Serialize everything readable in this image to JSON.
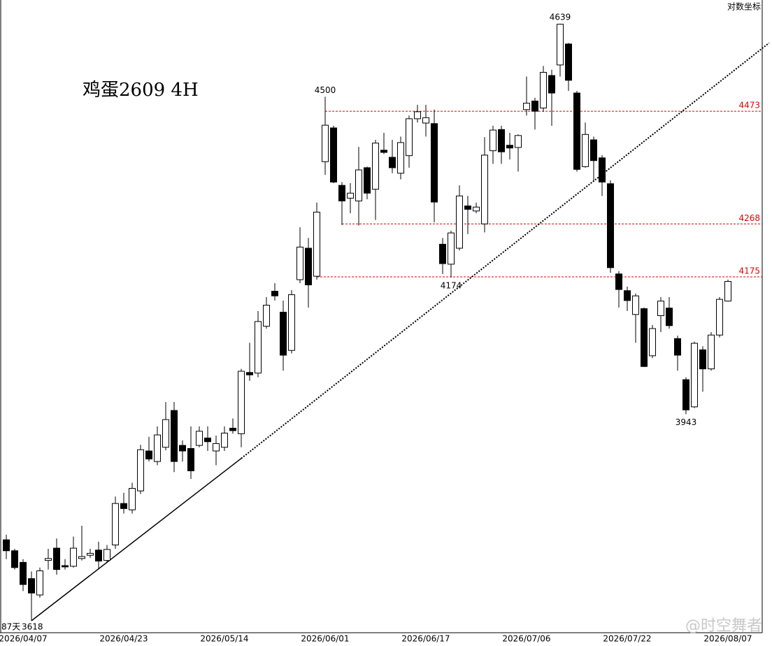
{
  "chart_data": {
    "type": "candlestick",
    "title": "鸡蛋2609  4H",
    "scale_note": "对数坐标",
    "log_scale": true,
    "ylim": [
      3600,
      4685
    ],
    "categories": [
      null,
      null,
      "2026/04/07",
      null,
      null,
      null,
      null,
      null,
      null,
      null,
      null,
      null,
      null,
      null,
      "2026/04/23",
      null,
      null,
      null,
      null,
      null,
      null,
      null,
      null,
      null,
      null,
      null,
      "2026/05/14",
      null,
      null,
      null,
      null,
      null,
      null,
      null,
      null,
      null,
      null,
      null,
      "2026/06/01",
      null,
      null,
      null,
      null,
      null,
      null,
      null,
      null,
      null,
      null,
      null,
      "2026/06/17",
      null,
      null,
      null,
      null,
      null,
      null,
      null,
      null,
      null,
      null,
      null,
      "2026/07/06",
      null,
      null,
      null,
      null,
      null,
      null,
      null,
      null,
      null,
      null,
      null,
      "2026/07/22",
      null,
      null,
      null,
      null,
      null,
      null,
      null,
      null,
      null,
      null,
      null,
      "2026/08/07"
    ],
    "open": [
      3742,
      3725,
      3707,
      3682,
      3657,
      3710,
      3729,
      3702,
      3701,
      3713,
      3718,
      3726,
      3710,
      3734,
      3799,
      3789,
      3819,
      3883,
      3866,
      3889,
      3949,
      3892,
      3887,
      3892,
      3904,
      3883,
      3889,
      3920,
      3911,
      4012,
      4011,
      4090,
      4150,
      4114,
      4049,
      4170,
      4225,
      4176,
      4380,
      4442,
      4337,
      4314,
      4309,
      4369,
      4330,
      4401,
      4388,
      4359,
      4391,
      4459,
      4451,
      4450,
      4232,
      4197,
      4225,
      4300,
      4291,
      4268,
      4400,
      4439,
      4410,
      4406,
      4476,
      4492,
      4479,
      4540,
      4560,
      4600,
      4507,
      4371,
      4420,
      4387,
      4340,
      4180,
      4151,
      4110,
      4120,
      4040,
      4108,
      4121,
      4069,
      4000,
      3955,
      4050,
      4018,
      4075,
      4133
    ],
    "high": [
      3750,
      3728,
      3712,
      3693,
      3699,
      3728,
      3744,
      3712,
      3747,
      3764,
      3728,
      3739,
      3734,
      3810,
      3816,
      3832,
      3893,
      3906,
      3923,
      3963,
      3963,
      3900,
      3923,
      3923,
      3923,
      3908,
      3923,
      3936,
      4018,
      4062,
      4116,
      4140,
      4164,
      4134,
      4152,
      4262,
      4243,
      4306,
      4500,
      4446,
      4343,
      4341,
      4407,
      4371,
      4420,
      4433,
      4420,
      4426,
      4465,
      4485,
      4485,
      4476,
      4243,
      4256,
      4337,
      4318,
      4306,
      4425,
      4446,
      4446,
      4433,
      4430,
      4538,
      4498,
      4558,
      4551,
      4639,
      4602,
      4511,
      4452,
      4426,
      4392,
      4346,
      4185,
      4158,
      4146,
      4122,
      4092,
      4140,
      4140,
      4074,
      4004,
      4064,
      4056,
      4080,
      4140,
      4170
    ],
    "low": [
      3712,
      3696,
      3663,
      3618,
      3653,
      3696,
      3688,
      3696,
      3699,
      3710,
      3714,
      3696,
      3706,
      3728,
      3783,
      3783,
      3814,
      3866,
      3860,
      3884,
      3849,
      3866,
      3838,
      3889,
      3883,
      3860,
      3883,
      3911,
      3889,
      3998,
      4004,
      4086,
      4134,
      4015,
      4044,
      4164,
      4122,
      4170,
      4356,
      4341,
      4266,
      4287,
      4265,
      4312,
      4275,
      4394,
      4359,
      4348,
      4369,
      4452,
      4426,
      4271,
      4180,
      4174,
      4221,
      4250,
      4287,
      4253,
      4376,
      4376,
      4384,
      4362,
      4465,
      4439,
      4472,
      4446,
      4538,
      4511,
      4362,
      4369,
      4343,
      4318,
      4182,
      4122,
      4116,
      4062,
      4021,
      4036,
      4080,
      4086,
      4015,
      3943,
      3953,
      3980,
      4015,
      4071,
      4132
    ],
    "close": [
      3725,
      3699,
      3673,
      3660,
      3694,
      3713,
      3696,
      3700,
      3729,
      3716,
      3721,
      3709,
      3727,
      3799,
      3791,
      3823,
      3885,
      3870,
      3909,
      3934,
      3866,
      3883,
      3851,
      3915,
      3898,
      3895,
      3912,
      3916,
      4014,
      4008,
      4098,
      4126,
      4142,
      4041,
      4144,
      4227,
      4161,
      4289,
      4447,
      4343,
      4309,
      4323,
      4365,
      4323,
      4414,
      4397,
      4369,
      4415,
      4459,
      4472,
      4461,
      4307,
      4198,
      4252,
      4318,
      4294,
      4298,
      4392,
      4438,
      4398,
      4405,
      4428,
      4488,
      4473,
      4546,
      4507,
      4638,
      4531,
      4366,
      4430,
      4382,
      4343,
      4191,
      4153,
      4134,
      4142,
      4022,
      4086,
      4133,
      4091,
      4041,
      3950,
      4061,
      4018,
      4075,
      4136,
      4167
    ],
    "up_color": "#ffffff",
    "down_color": "#000000",
    "levels": [
      {
        "value": 4473,
        "start": 38,
        "color": "#e00000"
      },
      {
        "value": 4268,
        "start": 40,
        "color": "#e00000"
      },
      {
        "value": 4175,
        "start": 37,
        "color": "#e00000"
      }
    ],
    "trendlines": [
      {
        "style": "solid",
        "points": [
          [
            3,
            3618
          ],
          [
            28,
            3871
          ]
        ]
      },
      {
        "style": "dotted",
        "points": [
          [
            28,
            3871
          ],
          [
            90.9,
            4602
          ]
        ]
      }
    ],
    "annotations": [
      {
        "index": 66,
        "value": 4639,
        "position": "above"
      },
      {
        "index": 38,
        "value": 4500,
        "position": "above"
      },
      {
        "index": 53,
        "value": 4174,
        "position": "below"
      },
      {
        "index": 81,
        "value": 3943,
        "position": "below"
      },
      {
        "index": 3,
        "value": 3618,
        "position": "corner"
      }
    ],
    "bar_count_label": "87天",
    "watermark": "@时空舞者"
  }
}
